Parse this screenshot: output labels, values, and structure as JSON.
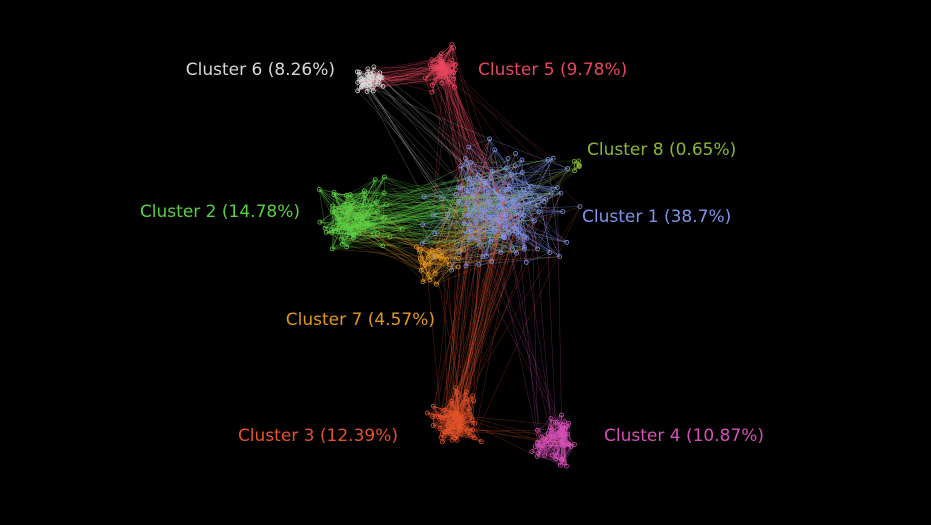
{
  "clusters": [
    {
      "label": "Cluster 1 (38.7%)",
      "color": "#7f93ec"
    },
    {
      "label": "Cluster 2 (14.78%)",
      "color": "#5cd045"
    },
    {
      "label": "Cluster 3 (12.39%)",
      "color": "#e5532a"
    },
    {
      "label": "Cluster 4 (10.87%)",
      "color": "#d650b8"
    },
    {
      "label": "Cluster 5 (9.78%)",
      "color": "#e8465f"
    },
    {
      "label": "Cluster 6 (8.26%)",
      "color": "#d8d8d8"
    },
    {
      "label": "Cluster 7 (4.57%)",
      "color": "#e3961f"
    },
    {
      "label": "Cluster 8 (0.65%)",
      "color": "#8bb833"
    }
  ]
}
